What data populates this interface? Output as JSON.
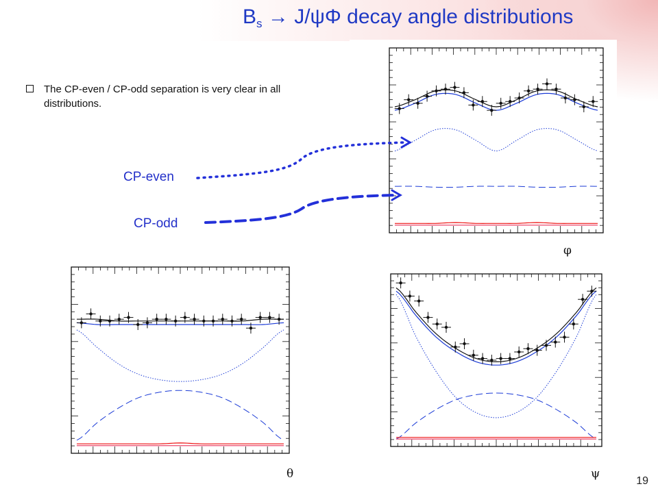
{
  "slide": {
    "title_main": "B",
    "title_sub": "s",
    "title_rest": "  J/ψΦ decay angle distributions",
    "arrow_glyph": "→",
    "bullet": "The CP-even  / CP-odd separation is very clear in all distributions.",
    "label_cp_even": "CP-even",
    "label_cp_odd": "CP-odd",
    "page_number": "19"
  },
  "colors": {
    "title": "#1f39c4",
    "model": "#1a3ad6",
    "total": "#111111",
    "background_pink": "#e8325a",
    "background_red": "#ee1111"
  },
  "chart_data": [
    {
      "type": "scatter",
      "name": "phi",
      "xlabel": "φ",
      "ylabel": "",
      "curves": [
        {
          "style": "solid-black",
          "y": [
            0.69,
            0.73,
            0.78,
            0.78,
            0.73,
            0.69,
            0.73,
            0.78,
            0.78,
            0.73,
            0.69
          ]
        },
        {
          "style": "solid-blue",
          "y": [
            0.67,
            0.71,
            0.76,
            0.76,
            0.71,
            0.67,
            0.71,
            0.76,
            0.76,
            0.71,
            0.67
          ]
        },
        {
          "style": "dotted-blue",
          "y": [
            0.44,
            0.5,
            0.56,
            0.56,
            0.5,
            0.44,
            0.5,
            0.56,
            0.56,
            0.5,
            0.44
          ]
        },
        {
          "style": "dashed-blue",
          "y": [
            0.24,
            0.24,
            0.235,
            0.235,
            0.24,
            0.24,
            0.24,
            0.235,
            0.235,
            0.24,
            0.24
          ]
        },
        {
          "style": "solid-red",
          "y": [
            0.03,
            0.03,
            0.03,
            0.035,
            0.03,
            0.03,
            0.03,
            0.035,
            0.03,
            0.03,
            0.03
          ]
        },
        {
          "style": "solid-pink",
          "y": [
            0.02,
            0.02,
            0.02,
            0.02,
            0.02,
            0.02,
            0.02,
            0.02,
            0.02,
            0.02,
            0.02
          ]
        }
      ],
      "points": [
        0.68,
        0.73,
        0.71,
        0.75,
        0.78,
        0.79,
        0.8,
        0.77,
        0.7,
        0.72,
        0.67,
        0.71,
        0.72,
        0.74,
        0.78,
        0.79,
        0.82,
        0.79,
        0.74,
        0.73,
        0.69,
        0.72
      ]
    },
    {
      "type": "scatter",
      "name": "theta",
      "xlabel": "θ",
      "ylabel": "",
      "curves": [
        {
          "style": "solid-black",
          "y": [
            0.73,
            0.73,
            0.72,
            0.72,
            0.72,
            0.72,
            0.72,
            0.72,
            0.72,
            0.73,
            0.73
          ]
        },
        {
          "style": "solid-blue",
          "y": [
            0.71,
            0.7,
            0.7,
            0.7,
            0.7,
            0.7,
            0.7,
            0.7,
            0.7,
            0.7,
            0.71
          ]
        },
        {
          "style": "dotted-blue",
          "y": [
            0.67,
            0.57,
            0.48,
            0.42,
            0.39,
            0.38,
            0.39,
            0.42,
            0.48,
            0.57,
            0.67
          ]
        },
        {
          "style": "dashed-blue",
          "y": [
            0.05,
            0.15,
            0.23,
            0.29,
            0.32,
            0.33,
            0.32,
            0.29,
            0.23,
            0.15,
            0.05
          ]
        },
        {
          "style": "solid-red",
          "y": [
            0.03,
            0.03,
            0.03,
            0.03,
            0.03,
            0.035,
            0.03,
            0.03,
            0.03,
            0.03,
            0.03
          ]
        },
        {
          "style": "solid-pink",
          "y": [
            0.02,
            0.02,
            0.02,
            0.02,
            0.02,
            0.02,
            0.02,
            0.02,
            0.02,
            0.02,
            0.02
          ]
        }
      ],
      "points": [
        0.71,
        0.76,
        0.72,
        0.72,
        0.73,
        0.74,
        0.7,
        0.71,
        0.73,
        0.73,
        0.72,
        0.74,
        0.73,
        0.72,
        0.72,
        0.73,
        0.72,
        0.73,
        0.68,
        0.74,
        0.74,
        0.73
      ]
    },
    {
      "type": "scatter",
      "name": "psi",
      "xlabel": "ψ",
      "ylabel": "",
      "curves": [
        {
          "style": "solid-black",
          "y": [
            0.94,
            0.79,
            0.66,
            0.57,
            0.51,
            0.49,
            0.51,
            0.57,
            0.66,
            0.79,
            0.94
          ]
        },
        {
          "style": "solid-blue",
          "y": [
            0.92,
            0.77,
            0.64,
            0.55,
            0.49,
            0.47,
            0.49,
            0.55,
            0.64,
            0.77,
            0.92
          ]
        },
        {
          "style": "dotted-blue",
          "y": [
            0.9,
            0.64,
            0.43,
            0.27,
            0.18,
            0.15,
            0.18,
            0.27,
            0.43,
            0.64,
            0.9
          ]
        },
        {
          "style": "dashed-blue",
          "y": [
            0.02,
            0.12,
            0.2,
            0.26,
            0.29,
            0.3,
            0.29,
            0.26,
            0.2,
            0.12,
            0.02
          ]
        },
        {
          "style": "solid-red",
          "y": [
            0.03,
            0.03,
            0.03,
            0.03,
            0.03,
            0.03,
            0.03,
            0.03,
            0.03,
            0.03,
            0.03
          ]
        },
        {
          "style": "solid-pink",
          "y": [
            0.02,
            0.02,
            0.02,
            0.02,
            0.02,
            0.02,
            0.02,
            0.02,
            0.02,
            0.02,
            0.02
          ]
        }
      ],
      "points": [
        0.97,
        0.89,
        0.86,
        0.76,
        0.72,
        0.7,
        0.58,
        0.6,
        0.53,
        0.51,
        0.5,
        0.51,
        0.51,
        0.55,
        0.57,
        0.56,
        0.59,
        0.61,
        0.64,
        0.72,
        0.87,
        0.92
      ]
    }
  ]
}
